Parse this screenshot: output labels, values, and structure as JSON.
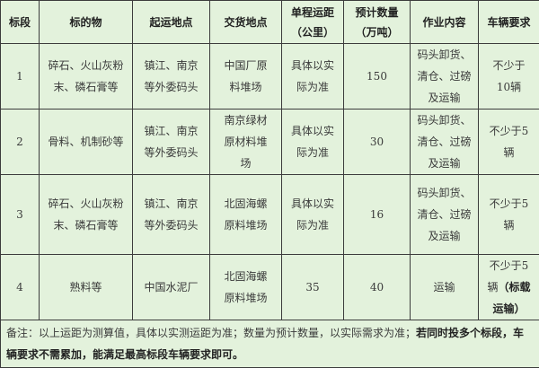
{
  "headers": [
    "标段",
    "标的物",
    "起运地点",
    "交货地点",
    "单程运距\n（公里）",
    "预计数量\n（万吨）",
    "作业内容",
    "车辆要求"
  ],
  "rows": [
    {
      "section": "1",
      "goods": "碎石、火山灰粉\n末、磷石膏等",
      "origin": "镇江、南京\n等外委码头",
      "destination": "中国厂原\n料堆场",
      "distance": "具体以实\n际为准",
      "quantity": "150",
      "work": "码头卸货、\n清仓、过磅\n及运输",
      "vehicles": "不少于\n10辆",
      "vehicles_bold": ""
    },
    {
      "section": "2",
      "goods": "骨料、机制砂等",
      "origin": "镇江、南京\n等外委码头",
      "destination": "南京绿材\n原材料堆\n场",
      "distance": "具体以实\n际为准",
      "quantity": "30",
      "work": "码头卸货、\n清仓、过磅\n及运输",
      "vehicles": "不少于5\n辆",
      "vehicles_bold": ""
    },
    {
      "section": "3",
      "goods": "碎石、火山灰粉\n末、磷石膏等",
      "origin": "镇江、南京\n等外委码头",
      "destination": "北固海螺\n原料堆场",
      "distance": "具体以实\n际为准",
      "quantity": "16",
      "work": "码头卸货、\n清仓、过磅\n及运输",
      "vehicles": "不少于5\n辆",
      "vehicles_bold": ""
    },
    {
      "section": "4",
      "goods": "熟料等",
      "origin": "中国水泥厂",
      "destination": "北固海螺\n原料堆场",
      "distance": "35",
      "quantity": "40",
      "work": "运输",
      "vehicles": "不少于5\n辆",
      "vehicles_bold": "（标载\n运输）"
    }
  ],
  "note": {
    "normal": "备注：以上运距为测算值，具体以实测运距为准；数量为预计数量，以实际需求为准；",
    "bold": "若同时投多个标段，车辆要求不需累加，能满足最高标段车辆要求即可。"
  }
}
